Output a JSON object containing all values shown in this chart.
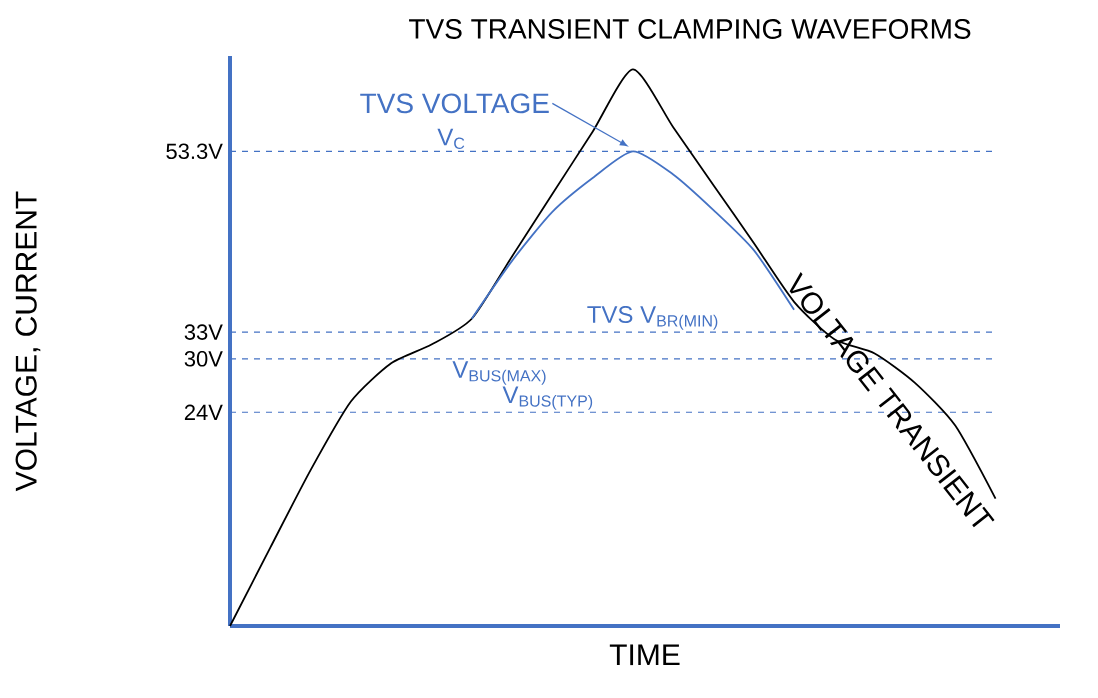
{
  "chart_data": {
    "type": "line",
    "title": "TVS TRANSIENT CLAMPING WAVEFORMS",
    "xlabel": "TIME",
    "ylabel": "VOLTAGE, CURRENT",
    "categories": [
      null,
      null,
      null,
      null,
      null,
      null,
      null,
      null,
      null,
      null,
      null,
      null,
      null,
      null,
      null,
      null,
      null,
      null,
      null,
      null
    ],
    "series": [
      {
        "name": "VOLTAGE TRANSIENT",
        "color": "#000000",
        "values": [
          0,
          8.8,
          17.5,
          25.2,
          29.5,
          31.6,
          34.5,
          41.5,
          48.5,
          55.5,
          62.5,
          56.0,
          49.5,
          43.0,
          36.4,
          32.2,
          30.6,
          27.3,
          22.5,
          14.3
        ]
      },
      {
        "name": "TVS VOLTAGE",
        "color": "#4472c4",
        "values": [
          null,
          null,
          null,
          null,
          null,
          null,
          34.5,
          41.0,
          46.5,
          50.3,
          53.3,
          50.7,
          46.7,
          42.2,
          35.5,
          null,
          null,
          null,
          null,
          null
        ]
      }
    ],
    "ylim": [
      0,
      64
    ],
    "yticks": [
      {
        "value": 24,
        "label": "24V"
      },
      {
        "value": 30,
        "label": "30V"
      },
      {
        "value": 33,
        "label": "33V"
      },
      {
        "value": 53.3,
        "label": "53.3V"
      }
    ],
    "tick_labels": "y",
    "ref_lines": [
      {
        "axis": "y",
        "value": 53.3,
        "label": "V$_{C}$",
        "color": "#4472c4",
        "line_style": "dashed"
      },
      {
        "axis": "y",
        "value": 33,
        "label": "TVS V$_{BR(MIN)}$",
        "color": "#4472c4",
        "line_style": "dashed"
      },
      {
        "axis": "y",
        "value": 30,
        "label": "V$_{BUS(MAX)}$",
        "color": "#4472c4",
        "line_style": "dashed"
      },
      {
        "axis": "y",
        "value": 24,
        "label": "V$_{BUS(TYP)}$",
        "color": "#4472c4",
        "line_style": "dashed"
      }
    ]
  }
}
